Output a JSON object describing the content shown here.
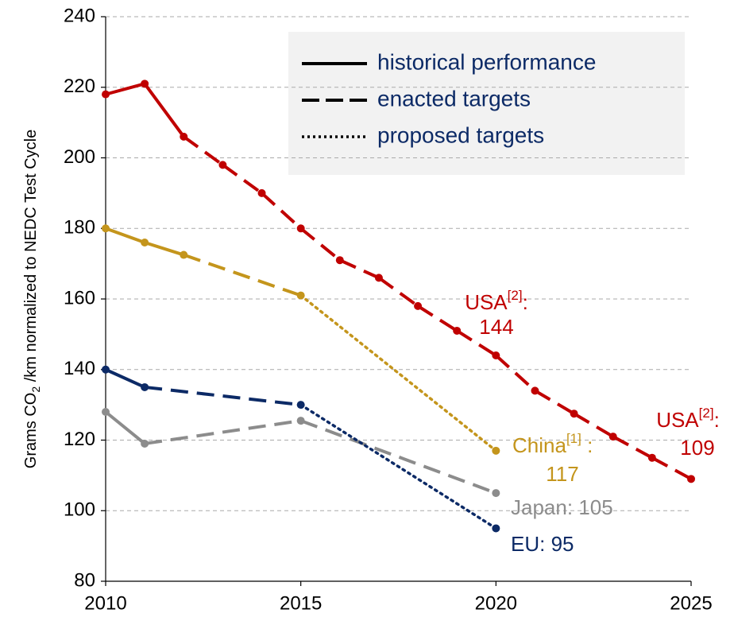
{
  "chart_data": {
    "type": "line",
    "ylabel": [
      "Grams CO",
      "2",
      " /km normalized to NEDC Test Cycle"
    ],
    "xlim": [
      2010,
      2025
    ],
    "xticks": [
      2010,
      2015,
      2020,
      2025
    ],
    "ylim": [
      80,
      240
    ],
    "yticks": [
      80,
      100,
      120,
      140,
      160,
      180,
      200,
      220,
      240
    ],
    "grid": true,
    "legend_position": "upper right",
    "legend": [
      {
        "label": "historical performance",
        "style": "solid"
      },
      {
        "label": "enacted targets",
        "style": "dashed"
      },
      {
        "label": "proposed targets",
        "style": "dotted"
      }
    ],
    "series": [
      {
        "name": "USA",
        "ref": "[2]",
        "sep": ":",
        "color": "#c00000",
        "x": [
          2010,
          2011,
          2012,
          2013,
          2014,
          2015,
          2016,
          2017,
          2018,
          2019,
          2020,
          2021,
          2022,
          2023,
          2024,
          2025
        ],
        "values": [
          218,
          221,
          206,
          198,
          190,
          180,
          171,
          166,
          158,
          151,
          144,
          134,
          127.5,
          121,
          115,
          109
        ],
        "styles": [
          "solid",
          "solid",
          "dashed",
          "dashed",
          "dashed",
          "dashed",
          "dashed",
          "dashed",
          "dashed",
          "dashed",
          "dashed",
          "dashed",
          "dashed",
          "dashed",
          "dashed"
        ]
      },
      {
        "name": "China",
        "ref": "[1]",
        "sep": " :",
        "color": "#c4951c",
        "x": [
          2010,
          2011,
          2012,
          2015,
          2020
        ],
        "values": [
          180,
          176,
          172.5,
          161,
          117
        ],
        "styles": [
          "solid",
          "solid",
          "dashed",
          "dotted"
        ]
      },
      {
        "name": "Japan",
        "sep": ":",
        "color": "#8c8c8c",
        "x": [
          2010,
          2011,
          2015,
          2020
        ],
        "values": [
          128,
          119,
          125.5,
          105
        ],
        "styles": [
          "solid",
          "dashed",
          "dashed"
        ]
      },
      {
        "name": "EU",
        "sep": ":",
        "color": "#0c2a66",
        "x": [
          2010,
          2011,
          2015,
          2020
        ],
        "values": [
          140,
          135,
          130,
          95
        ],
        "styles": [
          "solid",
          "dashed",
          "dotted"
        ]
      }
    ]
  }
}
